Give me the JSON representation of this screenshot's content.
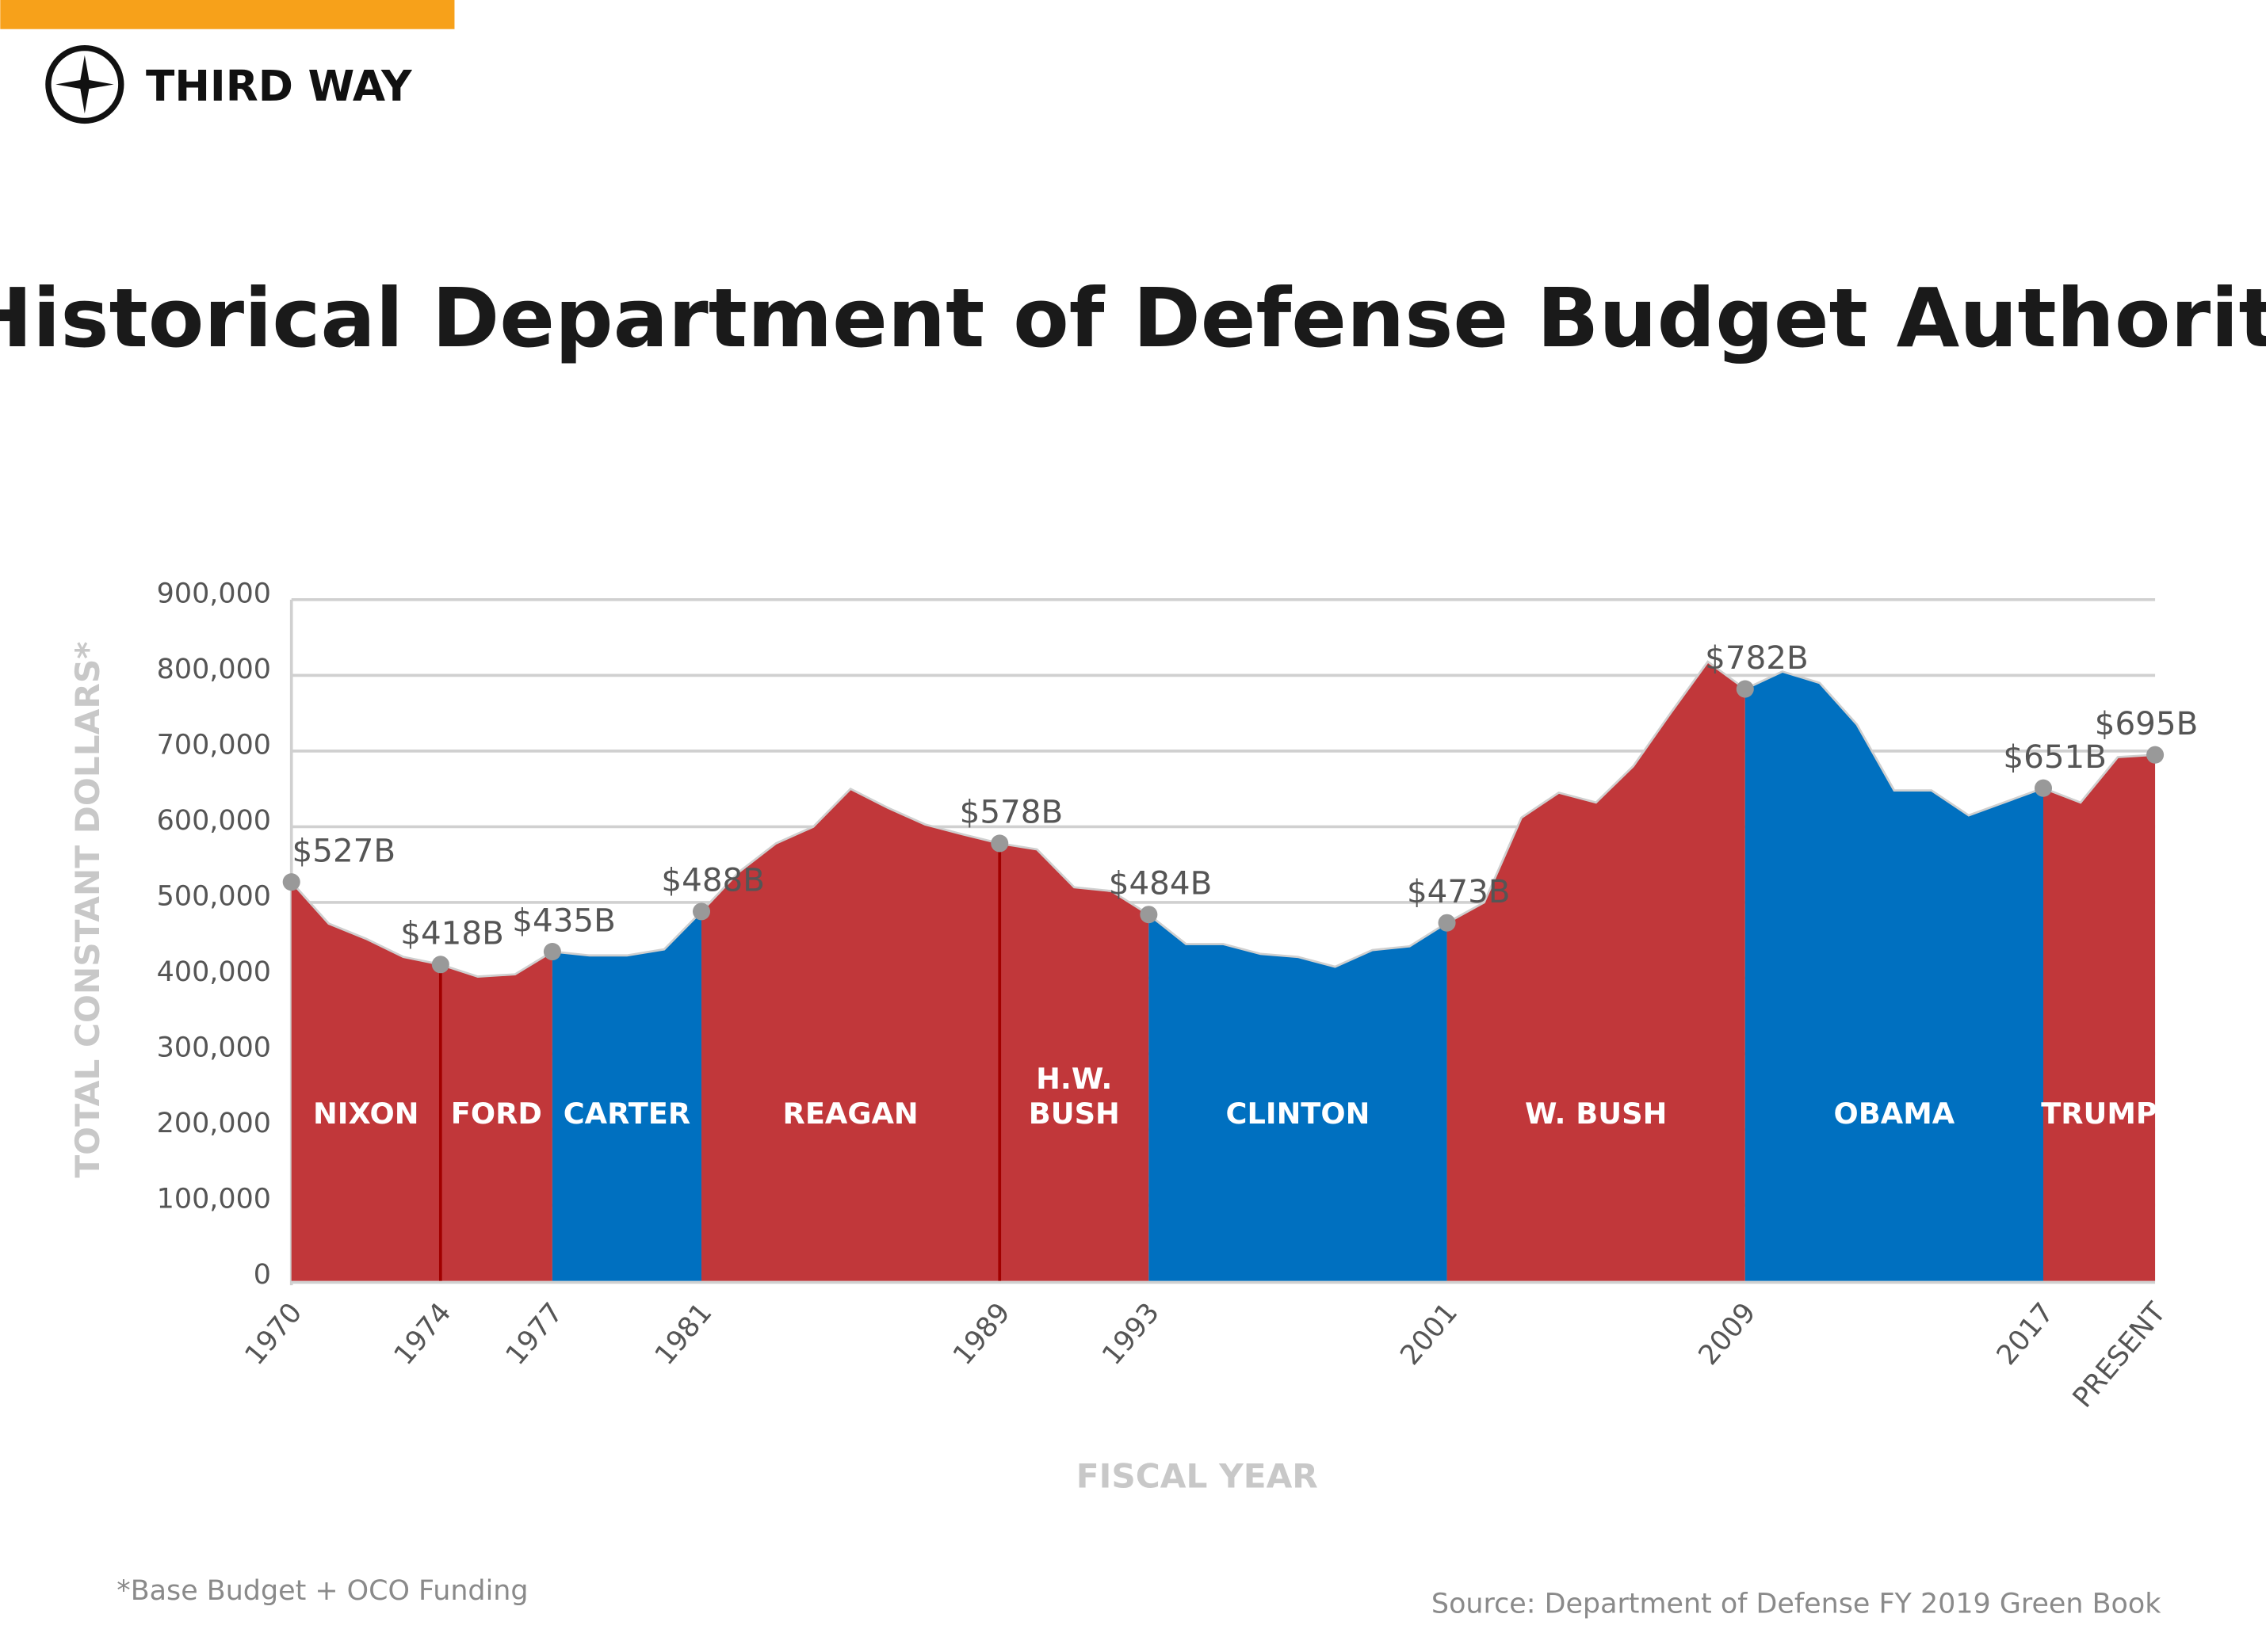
{
  "brand": {
    "name": "THIRD WAY",
    "accent": "#f7a11a"
  },
  "footnote": "*Base Budget + OCO Funding",
  "source": "Source: Department of Defense FY 2019 Green Book",
  "chart_data": {
    "type": "area",
    "title": "Historical Department of Defense Budget Authority",
    "xlabel": "FISCAL YEAR",
    "ylabel": "TOTAL CONSTANT DOLLARS*",
    "ylim": [
      0,
      900000
    ],
    "grid": true,
    "y_ticks": [
      "0",
      "100,000",
      "200,000",
      "300,000",
      "400,000",
      "500,000",
      "600,000",
      "700,000",
      "800,000",
      "900,000"
    ],
    "x_ticks": [
      {
        "year": 1970,
        "label": "1970"
      },
      {
        "year": 1974,
        "label": "1974"
      },
      {
        "year": 1977,
        "label": "1977"
      },
      {
        "year": 1981,
        "label": "1981"
      },
      {
        "year": 1989,
        "label": "1989"
      },
      {
        "year": 1993,
        "label": "1993"
      },
      {
        "year": 2001,
        "label": "2001"
      },
      {
        "year": 2009,
        "label": "2009"
      },
      {
        "year": 2017,
        "label": "2017"
      },
      {
        "year": 2020,
        "label": "PRESENT"
      }
    ],
    "x": [
      1970,
      1971,
      1972,
      1973,
      1974,
      1975,
      1976,
      1977,
      1978,
      1979,
      1980,
      1981,
      1982,
      1983,
      1984,
      1985,
      1986,
      1987,
      1988,
      1989,
      1990,
      1991,
      1992,
      1993,
      1994,
      1995,
      1996,
      1997,
      1998,
      1999,
      2000,
      2001,
      2002,
      2003,
      2004,
      2005,
      2006,
      2007,
      2008,
      2009,
      2010,
      2011,
      2012,
      2013,
      2014,
      2015,
      2016,
      2017,
      2018,
      2019,
      2020
    ],
    "values": [
      527000,
      472000,
      452000,
      428000,
      418000,
      402000,
      405000,
      435000,
      430000,
      430000,
      438000,
      488000,
      540000,
      578000,
      600000,
      650000,
      625000,
      603000,
      590000,
      578000,
      570000,
      520000,
      515000,
      484000,
      445000,
      445000,
      432000,
      428000,
      415000,
      437000,
      442000,
      473000,
      500000,
      612000,
      645000,
      632000,
      680000,
      750000,
      818000,
      782000,
      805000,
      790000,
      735000,
      648000,
      648000,
      615000,
      633000,
      651000,
      632000,
      692000,
      695000
    ],
    "point_labels": [
      {
        "year": 1970,
        "label": "$527B"
      },
      {
        "year": 1974,
        "label": "$418B"
      },
      {
        "year": 1977,
        "label": "$435B"
      },
      {
        "year": 1981,
        "label": "$488B"
      },
      {
        "year": 1989,
        "label": "$578B"
      },
      {
        "year": 1993,
        "label": "$484B"
      },
      {
        "year": 2001,
        "label": "$473B"
      },
      {
        "year": 2009,
        "label": "$782B"
      },
      {
        "year": 2017,
        "label": "$651B"
      },
      {
        "year": 2020,
        "label": "$695B"
      }
    ],
    "presidents": [
      {
        "name": "NIXON",
        "start": 1970,
        "end": 1974,
        "party_color": "#c1373a"
      },
      {
        "name": "FORD",
        "start": 1974,
        "end": 1977,
        "party_color": "#c1373a"
      },
      {
        "name": "CARTER",
        "start": 1977,
        "end": 1981,
        "party_color": "#0070c0"
      },
      {
        "name": "REAGAN",
        "start": 1981,
        "end": 1989,
        "party_color": "#c1373a"
      },
      {
        "name": "H.W. BUSH",
        "start": 1989,
        "end": 1993,
        "party_color": "#c1373a"
      },
      {
        "name": "CLINTON",
        "start": 1993,
        "end": 2001,
        "party_color": "#0070c0"
      },
      {
        "name": "W. BUSH",
        "start": 2001,
        "end": 2009,
        "party_color": "#c1373a"
      },
      {
        "name": "OBAMA",
        "start": 2009,
        "end": 2017,
        "party_color": "#0070c0"
      },
      {
        "name": "TRUMP",
        "start": 2017,
        "end": 2020,
        "party_color": "#c1373a"
      }
    ],
    "colors": {
      "republican": "#c1373a",
      "democrat": "#0070c0",
      "divider": "#a00000",
      "marker": "#999999"
    }
  }
}
